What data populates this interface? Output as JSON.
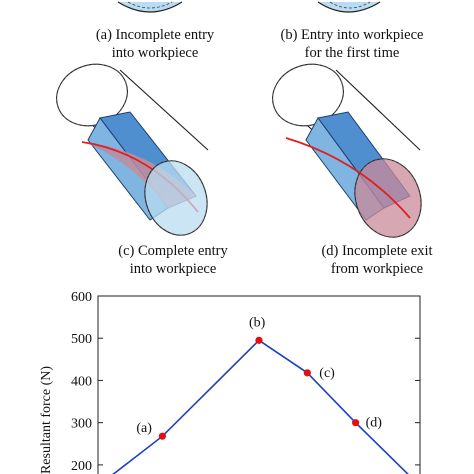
{
  "panels": [
    {
      "id": "a",
      "line1": "(a) Incomplete entry",
      "line2": "into workpiece"
    },
    {
      "id": "b",
      "line1": "(b) Entry into workpiece",
      "line2": "for the first time"
    },
    {
      "id": "c",
      "line1": "(c) Complete entry",
      "line2": "into workpiece"
    },
    {
      "id": "d",
      "line1": "(d) Incomplete exit",
      "line2": "from workpiece"
    }
  ],
  "colors": {
    "cylinder_fill": "#b9dcf2",
    "tool_fill": "#4f8fcf",
    "cut_fill": "#c98a9a",
    "cut_line": "#e02020",
    "series": "#1f3fbf",
    "marker": "#e01010"
  },
  "chart_data": {
    "type": "line",
    "title": "",
    "xlabel": "",
    "ylabel": "Resultant force (N)",
    "ylim": [
      150,
      600
    ],
    "yticks": [
      200,
      300,
      400,
      500,
      600
    ],
    "grid": false,
    "series": [
      {
        "values": [
          {
            "x": 0.0,
            "y": 150
          },
          {
            "x": 0.2,
            "y": 268
          },
          {
            "x": 0.5,
            "y": 495
          },
          {
            "x": 0.65,
            "y": 418
          },
          {
            "x": 0.8,
            "y": 300
          },
          {
            "x": 1.0,
            "y": 150
          }
        ]
      }
    ],
    "points": [
      {
        "label": "(a)",
        "x": 0.2,
        "y": 268
      },
      {
        "label": "(b)",
        "x": 0.5,
        "y": 495
      },
      {
        "label": "(c)",
        "x": 0.65,
        "y": 418
      },
      {
        "label": "(d)",
        "x": 0.8,
        "y": 300
      }
    ]
  }
}
